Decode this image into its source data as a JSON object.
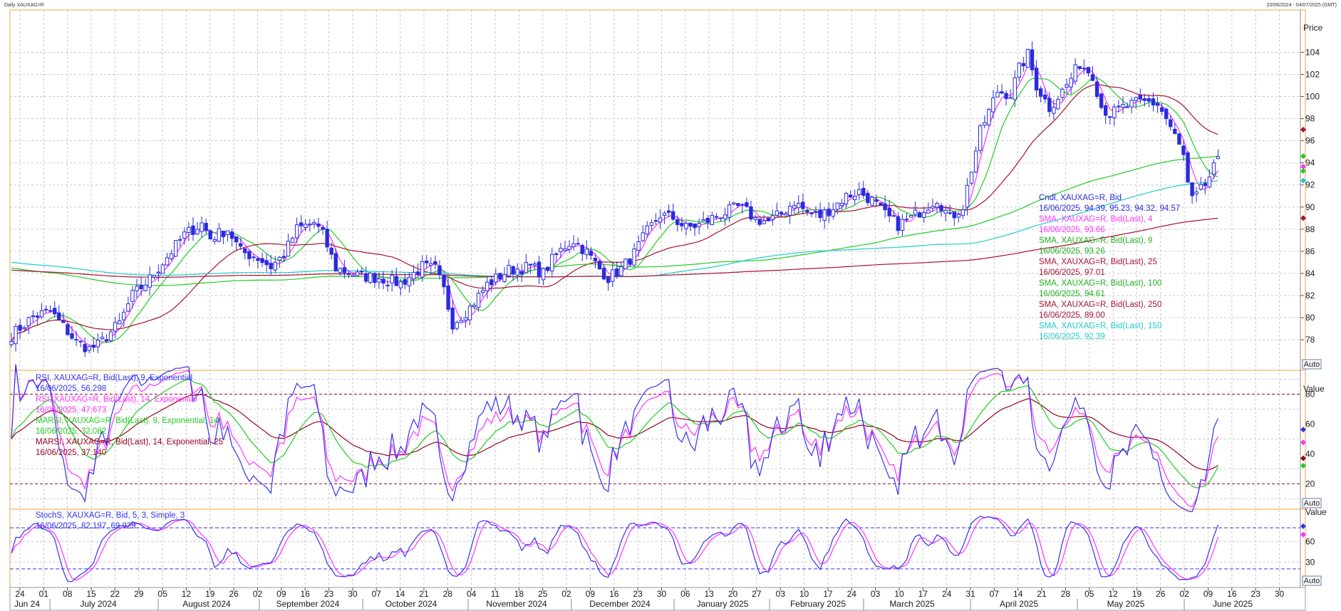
{
  "window": {
    "title": "Daily XAUXAG=R",
    "range": "20/06/2024 - 04/07/2025 (GMT)"
  },
  "colors": {
    "candle": "#2a2ae0",
    "sma4": "#ff33ff",
    "sma9": "#22cc22",
    "sma25": "#aa1133",
    "sma100": "#22cc22",
    "sma250": "#aa1133",
    "sma150": "#22cccc",
    "rsi9": "#3333ee",
    "rsi14": "#ff33ff",
    "marsi9": "#22cc22",
    "marsi14": "#990022",
    "stoch_k": "#3333ee",
    "stoch_d": "#ff33ff",
    "grid": "#c8c8c8",
    "panel_border": "#f5a040"
  },
  "chart_data": [
    {
      "type": "candlestick",
      "panel": "price",
      "ylabel": "Price",
      "ylim": [
        76.2,
        106.8
      ],
      "yticks": [
        78,
        80,
        82,
        84,
        86,
        88,
        90,
        92,
        94,
        96,
        98,
        100,
        102,
        104
      ],
      "auto_label": "Auto",
      "x_day_ticks": [
        "24",
        "01",
        "08",
        "15",
        "22",
        "29",
        "05",
        "12",
        "19",
        "26",
        "02",
        "09",
        "16",
        "23",
        "30",
        "07",
        "14",
        "21",
        "28",
        "04",
        "11",
        "18",
        "25",
        "02",
        "09",
        "16",
        "23",
        "30",
        "06",
        "13",
        "20",
        "27",
        "03",
        "10",
        "17",
        "24",
        "03",
        "10",
        "17",
        "24",
        "31",
        "07",
        "14",
        "21",
        "28",
        "05",
        "12",
        "19",
        "26",
        "02",
        "09",
        "16",
        "23",
        "30"
      ],
      "x_months": [
        "Jun 24",
        "July 2024",
        "August 2024",
        "September 2024",
        "October 2024",
        "November 2024",
        "December 2024",
        "January 2025",
        "February 2025",
        "March 2025",
        "April 2025",
        "May 2025",
        "June 2025"
      ],
      "close_anchors": [
        [
          0,
          78.4
        ],
        [
          5,
          80.1
        ],
        [
          9,
          80.6
        ],
        [
          12,
          79.2
        ],
        [
          15,
          77.8
        ],
        [
          18,
          77.2
        ],
        [
          20,
          77.5
        ],
        [
          25,
          79.5
        ],
        [
          28,
          82.0
        ],
        [
          32,
          83.5
        ],
        [
          36,
          85.5
        ],
        [
          40,
          87.5
        ],
        [
          44,
          88.5
        ],
        [
          46,
          87.2
        ],
        [
          50,
          88.0
        ],
        [
          53,
          86.0
        ],
        [
          57,
          85.4
        ],
        [
          60,
          84.6
        ],
        [
          63,
          85.7
        ],
        [
          66,
          88.0
        ],
        [
          70,
          88.6
        ],
        [
          72,
          87.5
        ],
        [
          75,
          84.5
        ],
        [
          80,
          83.8
        ],
        [
          85,
          83.6
        ],
        [
          90,
          83.1
        ],
        [
          95,
          84.6
        ],
        [
          98,
          84.4
        ],
        [
          100,
          82.5
        ],
        [
          102,
          79.5
        ],
        [
          106,
          80.9
        ],
        [
          110,
          83.0
        ],
        [
          115,
          84.3
        ],
        [
          120,
          84.6
        ],
        [
          123,
          84.0
        ],
        [
          125,
          85.2
        ],
        [
          128,
          86.5
        ],
        [
          130,
          87.0
        ],
        [
          133,
          85.9
        ],
        [
          136,
          84.4
        ],
        [
          138,
          83.6
        ],
        [
          141,
          84.4
        ],
        [
          144,
          85.8
        ],
        [
          147,
          87.8
        ],
        [
          150,
          89.3
        ],
        [
          153,
          89.0
        ],
        [
          156,
          88.1
        ],
        [
          159,
          88.4
        ],
        [
          162,
          89.0
        ],
        [
          165,
          89.5
        ],
        [
          168,
          90.0
        ],
        [
          170,
          89.6
        ],
        [
          172,
          88.9
        ],
        [
          175,
          88.7
        ],
        [
          178,
          89.4
        ],
        [
          181,
          90.5
        ],
        [
          184,
          89.5
        ],
        [
          187,
          89.2
        ],
        [
          190,
          90.0
        ],
        [
          193,
          91.0
        ],
        [
          196,
          91.4
        ],
        [
          199,
          90.6
        ],
        [
          202,
          89.3
        ],
        [
          205,
          88.4
        ],
        [
          208,
          89.0
        ],
        [
          211,
          89.9
        ],
        [
          214,
          90.8
        ],
        [
          217,
          89.0
        ],
        [
          220,
          90.1
        ],
        [
          224,
          96.8
        ],
        [
          228,
          100.5
        ],
        [
          231,
          100.2
        ],
        [
          233,
          102.5
        ],
        [
          235,
          103.8
        ],
        [
          237,
          101.0
        ],
        [
          240,
          99.0
        ],
        [
          244,
          101.0
        ],
        [
          247,
          103.0
        ],
        [
          250,
          102.0
        ],
        [
          252,
          99.1
        ],
        [
          254,
          98.4
        ],
        [
          257,
          99.0
        ],
        [
          260,
          99.4
        ],
        [
          263,
          99.5
        ],
        [
          265,
          99.3
        ],
        [
          267,
          98.0
        ],
        [
          269,
          96.4
        ],
        [
          271,
          94.6
        ],
        [
          272,
          92.0
        ],
        [
          273,
          90.6
        ],
        [
          274,
          91.0
        ],
        [
          276,
          92.0
        ],
        [
          278,
          93.5
        ],
        [
          279,
          94.57
        ]
      ],
      "moving_average_windows": [
        4,
        9,
        25,
        100,
        150,
        250
      ],
      "legend": [
        {
          "title": "Cndl, XAUXAG=R, Bid",
          "value": "16/06/2025, 94.39, 95.23, 94.32, 94.57",
          "color": "#2a2ae0"
        },
        {
          "title": "SMA, XAUXAG=R, Bid(Last),  4",
          "value": "16/06/2025, 93.66",
          "color": "#ff33ff"
        },
        {
          "title": "SMA, XAUXAG=R, Bid(Last),  9",
          "value": "16/06/2025, 93.26",
          "color": "#1fb01f"
        },
        {
          "title": "SMA, XAUXAG=R, Bid(Last),  25",
          "value": "16/06/2025, 97.01",
          "color": "#aa1133"
        },
        {
          "title": "SMA, XAUXAG=R, Bid(Last),  100",
          "value": "16/06/2025, 94.61",
          "color": "#1fb01f"
        },
        {
          "title": "SMA, XAUXAG=R, Bid(Last),  250",
          "value": "16/06/2025, 89.00",
          "color": "#aa1133"
        },
        {
          "title": "SMA, XAUXAG=R, Bid(Last),  150",
          "value": "16/06/2025, 92.39",
          "color": "#22cccc"
        }
      ],
      "last_values": {
        "close": 94.57,
        "sma4": 93.66,
        "sma9": 93.26,
        "sma25": 97.01,
        "sma100": 94.61,
        "sma250": 89.0,
        "sma150": 92.39
      }
    },
    {
      "type": "line",
      "panel": "rsi",
      "ylabel": "Value",
      "ylim": [
        4,
        95
      ],
      "yticks": [
        20,
        40,
        60,
        80
      ],
      "levels": [
        20,
        80
      ],
      "auto_label": "Auto",
      "legend": [
        {
          "title": "RSI, XAUXAG=R, Bid(Last),  9, Exponential",
          "value": "16/06/2025, 56.298",
          "color": "#3333ee"
        },
        {
          "title": "RSI, XAUXAG=R, Bid(Last),  14, Exponential",
          "value": "16/06/2025, 47.673",
          "color": "#ff33ff"
        },
        {
          "title": "MARSI, XAUXAG=R, Bid(Last),  9, Exponential, 14",
          "value": "16/06/2025, 32.082",
          "color": "#22cc22"
        },
        {
          "title": "MARSI, XAUXAG=R, Bid(Last),  14, Exponential, 25",
          "value": "16/06/2025, 37.140",
          "color": "#990022"
        }
      ],
      "last_values": {
        "rsi9": 56.298,
        "rsi14": 47.673,
        "marsi9": 32.082,
        "marsi14": 37.14
      }
    },
    {
      "type": "line",
      "panel": "stochastic",
      "ylabel": "Value",
      "ylim": [
        -5,
        105
      ],
      "yticks": [
        30,
        60
      ],
      "levels": [
        20,
        80
      ],
      "auto_label": "Auto",
      "legend": [
        {
          "title": "StochS, XAUXAG=R, Bid,  5, 3, Simple, 3",
          "value": "16/06/2025, 82.197, 69.929",
          "color": "#3333ee",
          "value2_color": "#ff33ff"
        }
      ],
      "last_values": {
        "k": 82.197,
        "d": 69.929
      }
    }
  ]
}
